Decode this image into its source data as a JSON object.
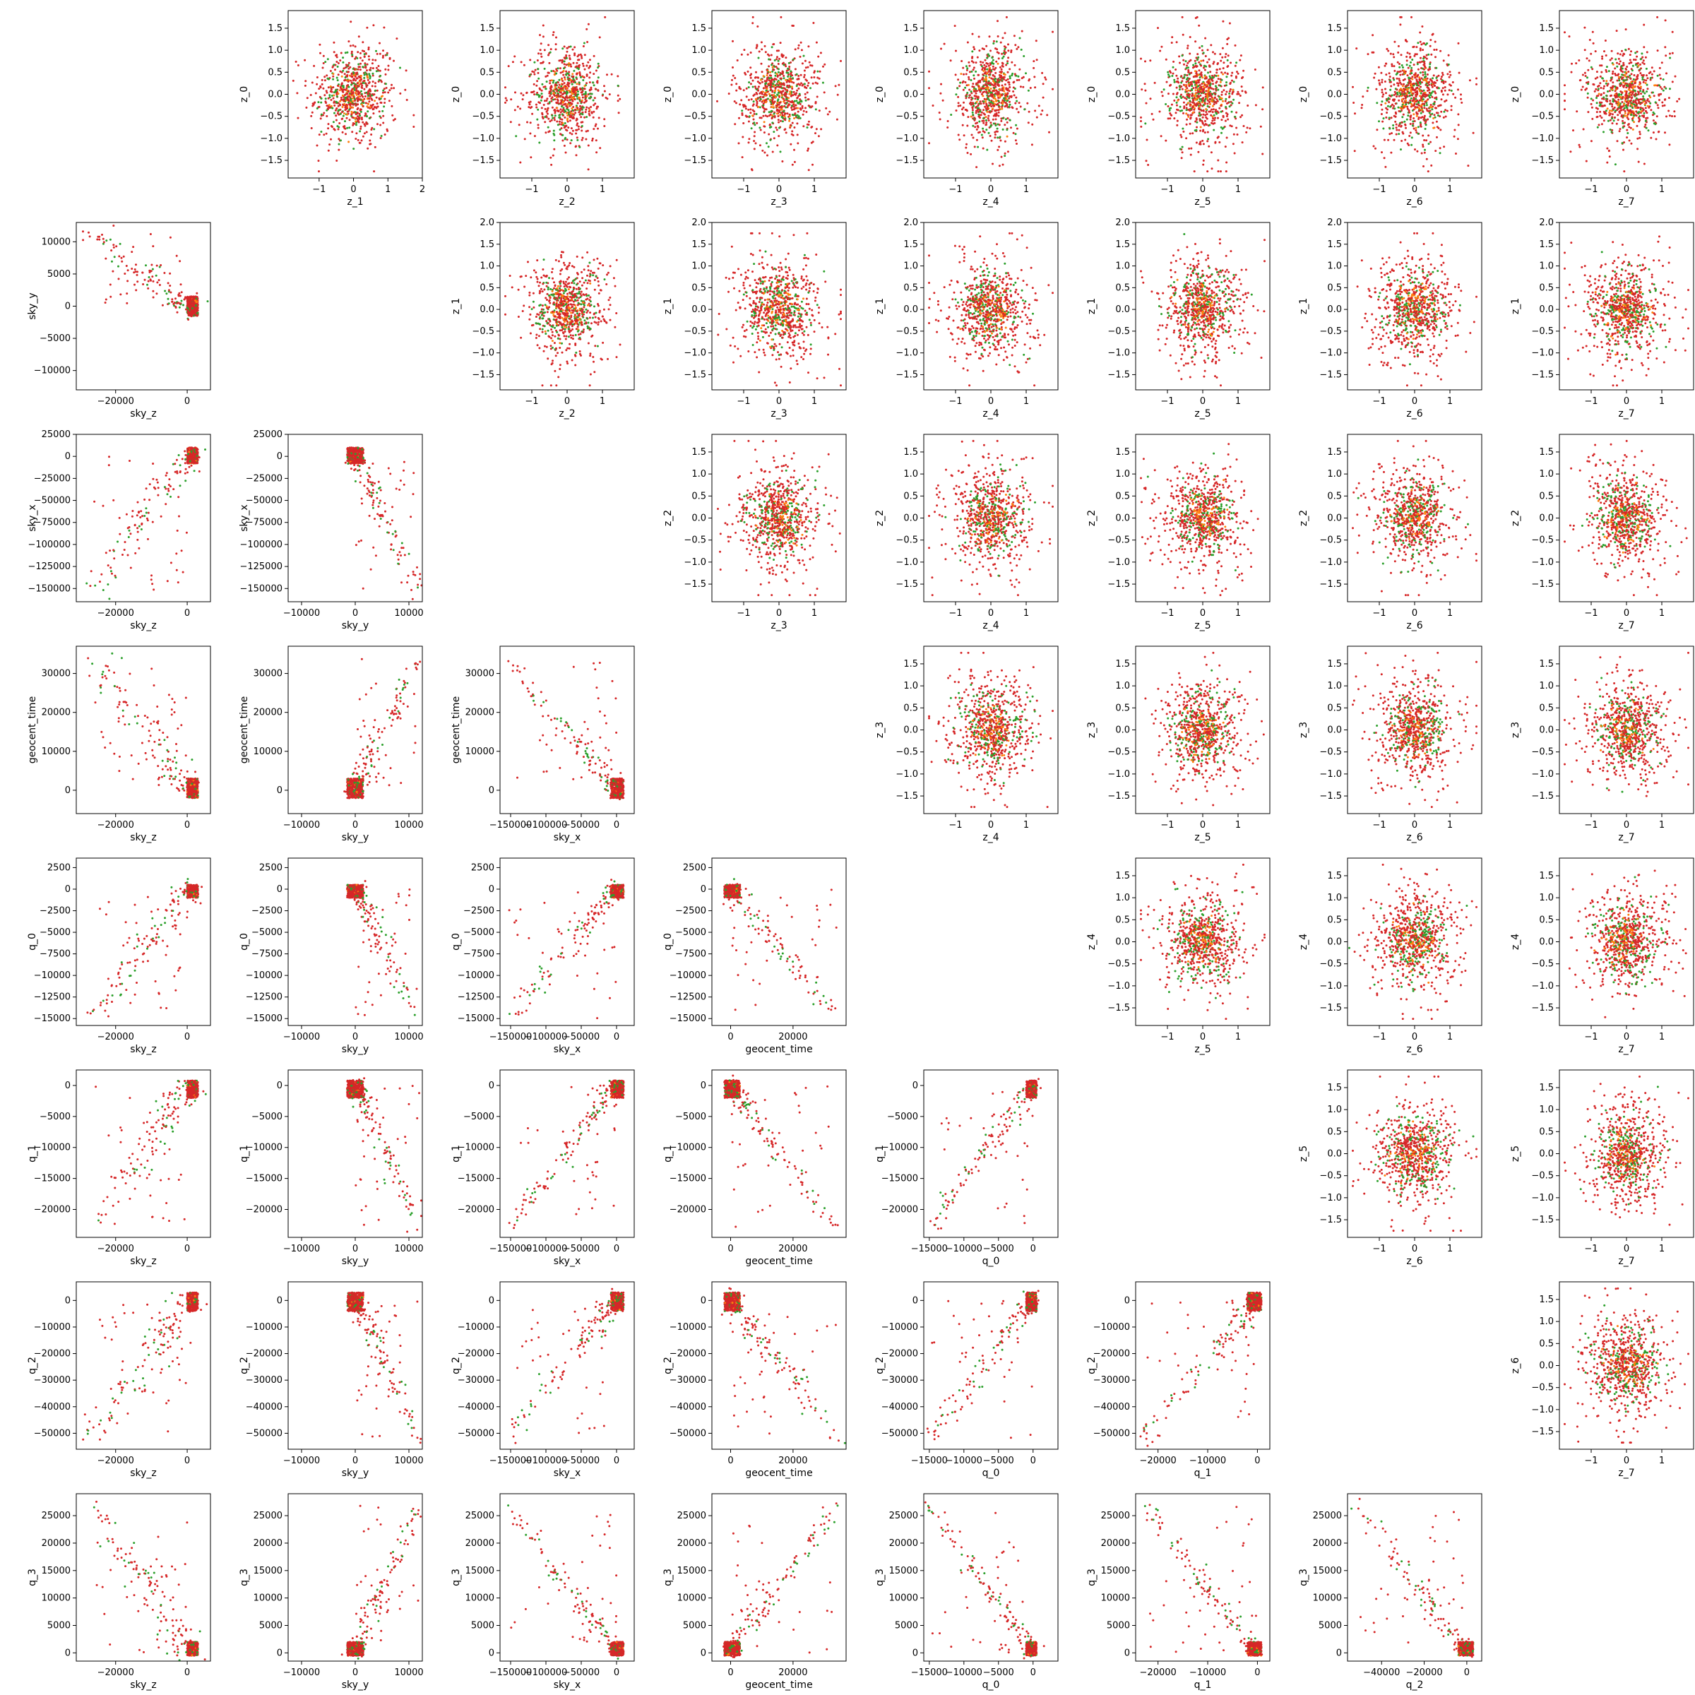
{
  "colors": {
    "red": "#d62728",
    "green": "#2ca02c",
    "orange": "#ff7f0e",
    "frame": "#000000"
  },
  "labels": {
    "z_0": "z_0",
    "z_1": "z_1",
    "z_2": "z_2",
    "z_3": "z_3",
    "z_4": "z_4",
    "z_5": "z_5",
    "z_6": "z_6",
    "z_7": "z_7",
    "sky_z": "sky_z",
    "sky_y": "sky_y",
    "sky_x": "sky_x",
    "geocent_time": "geocent_time",
    "q_0": "q_0",
    "q_1": "q_1",
    "q_2": "q_2",
    "q_3": "q_3"
  },
  "chart_data": {
    "type": "scatter",
    "layout": "corner-plot matrix: lower triangle = physical parameters vs physical parameters, upper triangle = latent z pairs",
    "lower_variables": [
      "sky_z",
      "sky_y",
      "sky_x",
      "geocent_time",
      "q_0",
      "q_1",
      "q_2",
      "q_3"
    ],
    "upper_variables": [
      "z_0",
      "z_1",
      "z_2",
      "z_3",
      "z_4",
      "z_5",
      "z_6",
      "z_7"
    ],
    "axes": {
      "sky_z": {
        "range": [
          -31000,
          6500
        ],
        "ticks": [
          -20000,
          0
        ],
        "tick_labels": [
          "−20000",
          "0"
        ]
      },
      "sky_y": {
        "range": [
          -12500,
          12500
        ],
        "ticks": [
          -10000,
          0,
          10000
        ],
        "tick_labels": [
          "−10000",
          "0",
          "10000"
        ]
      },
      "sky_x": {
        "range": [
          -165000,
          25000
        ],
        "ticks": [
          -150000,
          -100000,
          -50000,
          0
        ],
        "tick_labels": [
          "−150000",
          "−100000",
          "−50000",
          "0"
        ],
        "y_ticks": [
          25000,
          0,
          -25000,
          -50000,
          -75000,
          -100000,
          -125000,
          -150000
        ],
        "y_tick_labels": [
          "25000",
          "0",
          "−25000",
          "−50000",
          "−75000",
          "−100000",
          "−125000",
          "−150000"
        ]
      },
      "geocent_time": {
        "range": [
          -6000,
          37000
        ],
        "ticks": [
          0,
          20000
        ],
        "tick_labels": [
          "0",
          "20000"
        ],
        "y_ticks": [
          0,
          10000,
          20000,
          30000
        ],
        "y_tick_labels": [
          "0",
          "10000",
          "20000",
          "30000"
        ]
      },
      "q_0": {
        "range": [
          -15800,
          3600
        ],
        "ticks": [
          -15000,
          -10000,
          -5000,
          0
        ],
        "tick_labels": [
          "−15000",
          "−10000",
          "−5000",
          "0"
        ],
        "y_ticks": [
          2500,
          0,
          -2500,
          -5000,
          -7500,
          -10000,
          -12500,
          -15000
        ],
        "y_tick_labels": [
          "2500",
          "0",
          "−2500",
          "−5000",
          "−7500",
          "−10000",
          "−12500",
          "−15000"
        ]
      },
      "q_1": {
        "range": [
          -24500,
          2500
        ],
        "ticks": [
          -20000,
          -10000,
          0
        ],
        "tick_labels": [
          "−20000",
          "−10000",
          "0"
        ],
        "y_ticks": [
          0,
          -5000,
          -10000,
          -15000,
          -20000
        ],
        "y_tick_labels": [
          "0",
          "−5000",
          "−10000",
          "−15000",
          "−20000"
        ]
      },
      "q_2": {
        "range": [
          -56000,
          7000
        ],
        "ticks": [
          -40000,
          -20000,
          0
        ],
        "tick_labels": [
          "−40000",
          "−20000",
          "0"
        ],
        "y_ticks": [
          0,
          -10000,
          -20000,
          -30000,
          -40000,
          -50000
        ],
        "y_tick_labels": [
          "0",
          "−10000",
          "−20000",
          "−30000",
          "−40000",
          "−50000"
        ]
      },
      "q_3": {
        "range": [
          -1500,
          29000
        ],
        "y_ticks": [
          0,
          5000,
          10000,
          15000,
          20000,
          25000
        ],
        "y_tick_labels": [
          "0",
          "5000",
          "10000",
          "15000",
          "20000",
          "25000"
        ]
      },
      "sky_y_vertical": {
        "range": [
          -13000,
          13000
        ],
        "y_ticks": [
          10000,
          5000,
          0,
          -5000,
          -10000
        ],
        "y_tick_labels": [
          "10000",
          "5000",
          "0",
          "−5000",
          "−10000"
        ]
      },
      "sky_x_vertical": {
        "range": [
          -165000,
          25000
        ]
      },
      "z_vertical": {
        "range": [
          -1.9,
          1.9
        ],
        "y_ticks": [
          1.5,
          1.0,
          0.5,
          0.0,
          -0.5,
          -1.0,
          -1.5
        ],
        "y_tick_labels": [
          "1.5",
          "1.0",
          "0.5",
          "0.0",
          "−0.5",
          "−1.0",
          "−1.5"
        ]
      },
      "z_1_vertical": {
        "range": [
          -1.85,
          2.0
        ],
        "y_ticks": [
          2.0,
          1.5,
          1.0,
          0.5,
          0.0,
          -0.5,
          -1.0,
          -1.5
        ],
        "y_tick_labels": [
          "2.0",
          "1.5",
          "1.0",
          "0.5",
          "0.0",
          "−0.5",
          "−1.0",
          "−1.5"
        ]
      },
      "z_horizontal": {
        "range": [
          -1.9,
          1.9
        ],
        "ticks": [
          -1,
          0,
          1
        ],
        "tick_labels": [
          "−1",
          "0",
          "1"
        ]
      },
      "z_1_horizontal": {
        "range": [
          -1.9,
          2.0
        ],
        "ticks": [
          -1,
          0,
          1,
          2
        ],
        "tick_labels": [
          "−1",
          "0",
          "1",
          "2"
        ]
      }
    },
    "series": [
      {
        "color": "#d62728",
        "role": "dominant point cloud"
      },
      {
        "color": "#2ca02c",
        "role": "secondary points"
      },
      {
        "color": "#ff7f0e",
        "role": "central points"
      }
    ],
    "grid": false,
    "legend": "none"
  }
}
